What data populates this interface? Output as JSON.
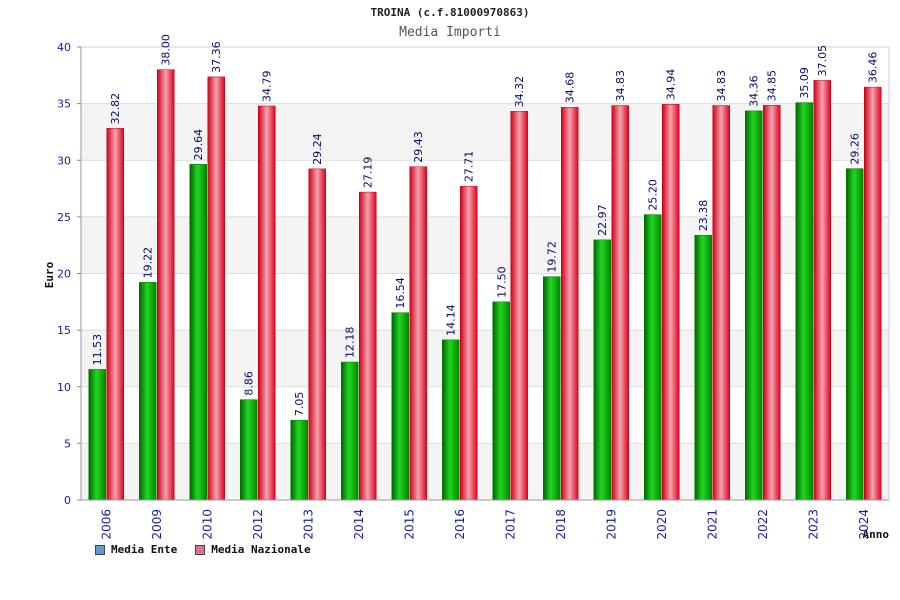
{
  "chart_data": {
    "type": "bar",
    "title": "TROINA (c.f.81000970863)",
    "subtitle": "Media Importi",
    "xlabel": "Anno",
    "ylabel": "Euro",
    "ylim": [
      0,
      40
    ],
    "yticks": [
      0,
      5,
      10,
      15,
      20,
      25,
      30,
      35,
      40
    ],
    "grid": true,
    "legend_position": "bottom-left",
    "categories": [
      "2006",
      "2009",
      "2010",
      "2012",
      "2013",
      "2014",
      "2015",
      "2016",
      "2017",
      "2018",
      "2019",
      "2020",
      "2021",
      "2022",
      "2023",
      "2024"
    ],
    "series": [
      {
        "name": "Media Ente",
        "color": "#00b000",
        "legend_color": "#5b9bd5",
        "values": [
          11.53,
          19.22,
          29.64,
          8.86,
          7.05,
          12.18,
          16.54,
          14.14,
          17.5,
          19.72,
          22.97,
          25.2,
          23.38,
          34.36,
          35.09,
          29.26
        ],
        "labels": [
          "11.53",
          "19.22",
          "29.64",
          "8.86",
          "7.05",
          "12.18",
          "16.54",
          "14.14",
          "17.50",
          "19.72",
          "22.97",
          "25.20",
          "23.38",
          "34.36",
          "35.09",
          "29.26"
        ]
      },
      {
        "name": "Media Nazionale",
        "color": "#e8182e",
        "legend_color": "#d9739a",
        "values": [
          32.82,
          38.0,
          37.36,
          34.79,
          29.24,
          27.19,
          29.43,
          27.71,
          34.32,
          34.68,
          34.83,
          34.94,
          34.83,
          34.85,
          37.05,
          36.46
        ],
        "labels": [
          "32.82",
          "38.00",
          "37.36",
          "34.79",
          "29.24",
          "27.19",
          "29.43",
          "27.71",
          "34.32",
          "34.68",
          "34.83",
          "34.94",
          "34.83",
          "34.85",
          "37.05",
          "36.46"
        ]
      }
    ]
  }
}
